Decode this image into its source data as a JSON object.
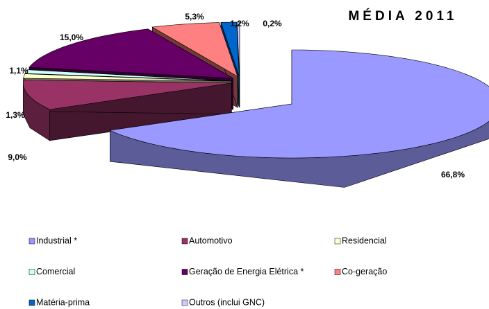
{
  "chart_data": {
    "type": "pie3d",
    "title": "MÉDIA 2011",
    "categories": [
      "Industrial *",
      "Automotivo",
      "Residencial",
      "Comercial",
      "Geração de Energia Elétrica *",
      "Co-geração",
      "Matéria-prima",
      "Outros (inclui GNC)"
    ],
    "values": [
      66.8,
      9.0,
      1.3,
      1.1,
      15.0,
      5.3,
      1.2,
      0.2
    ],
    "value_labels": [
      "66,8%",
      "9,0%",
      "1,3%",
      "1,1%",
      "15,0%",
      "5,3%",
      "1,2%",
      "0,2%"
    ],
    "colors": [
      "#9999ff",
      "#993366",
      "#ffffcc",
      "#ccffff",
      "#660066",
      "#ff8080",
      "#0066cc",
      "#ccccff"
    ]
  }
}
